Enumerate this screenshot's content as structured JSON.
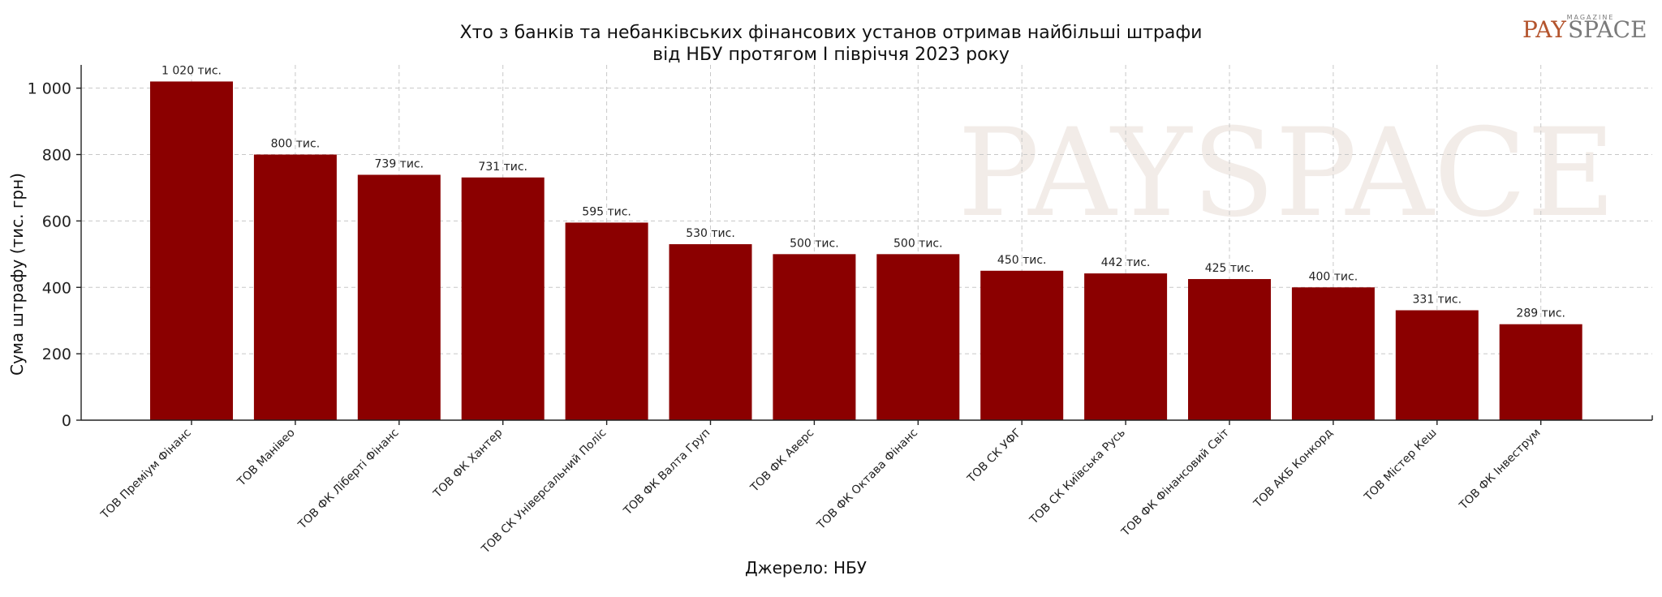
{
  "logo": {
    "part1": "PAY",
    "part2": "SPACE",
    "tagline": "MAGAZINE"
  },
  "watermark": "PAYSPACE",
  "chart_data": {
    "type": "bar",
    "title_lines": [
      "Хто з банків та небанківських фінансових установ отримав найбільші штрафи",
      "від НБУ протягом І півріччя 2023 року"
    ],
    "ylabel": "Сума штрафу (тис. грн)",
    "xlabel": "",
    "source": "Джерело: НБУ",
    "ylim": [
      0,
      1070
    ],
    "yticks": [
      0,
      200,
      400,
      600,
      800,
      1000
    ],
    "ytick_labels": [
      "0",
      "200",
      "400",
      "600",
      "800",
      "1 000"
    ],
    "grid": true,
    "bar_color": "#8b0000",
    "categories": [
      "ТОВ Преміум Фінанс",
      "ТОВ Манівео",
      "ТОВ ФК Ліберті Фінанс",
      "ТОВ ФК Хантер",
      "ТОВ СК Універсальний Поліс",
      "ТОВ ФК Валта Груп",
      "ТОВ ФК Аверс",
      "ТОВ ФК Октава Фінанс",
      "ТОВ СК УФГ",
      "ТОВ СК Київська Русь",
      "ТОВ ФК Фінансовий Світ",
      "ТОВ АКБ Конкорд",
      "ТОВ Містер Кеш",
      "ТОВ ФК Інвеструм"
    ],
    "values": [
      1020,
      800,
      739,
      731,
      595,
      530,
      500,
      500,
      450,
      442,
      425,
      400,
      331,
      289
    ],
    "value_labels": [
      "1 020 тис.",
      "800 тис.",
      "739 тис.",
      "731 тис.",
      "595 тис.",
      "530 тис.",
      "500 тис.",
      "500 тис.",
      "450 тис.",
      "442 тис.",
      "425 тис.",
      "400 тис.",
      "331 тис.",
      "289 тис."
    ]
  }
}
